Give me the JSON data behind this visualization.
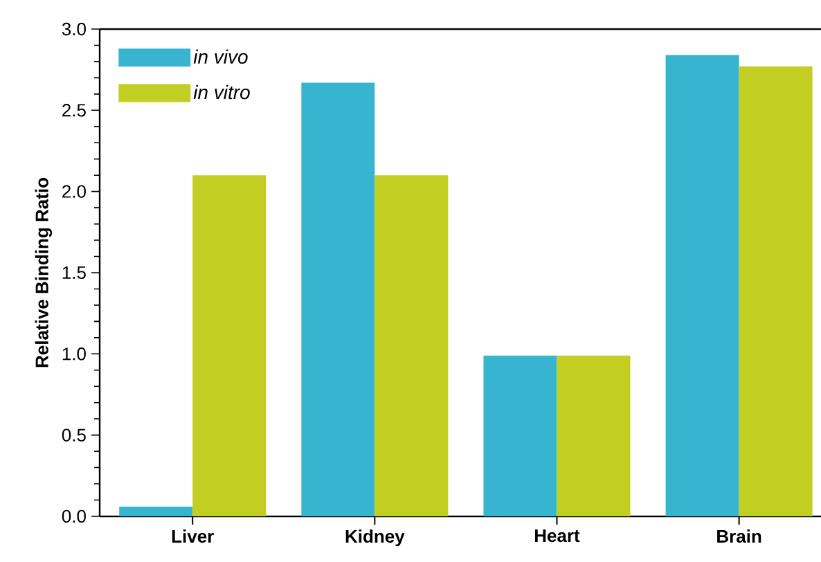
{
  "chart_data": {
    "type": "bar",
    "ylabel": "Relative Binding Ratio",
    "categories": [
      "Liver",
      "Kidney",
      "Heart",
      "Brain"
    ],
    "series": [
      {
        "name": "in vivo",
        "color": "#36b4d0",
        "values": [
          0.06,
          2.67,
          0.99,
          2.84
        ]
      },
      {
        "name": "in vitro",
        "color": "#c2cf22",
        "values": [
          2.1,
          2.1,
          0.99,
          2.77
        ]
      }
    ],
    "ylim": [
      0,
      3
    ],
    "yticks": [
      {
        "value": 0,
        "label": "0.0"
      },
      0.5,
      {
        "value": 1,
        "label": "1.0"
      },
      1.5,
      {
        "value": 2,
        "label": "2.0"
      },
      2.5,
      {
        "value": 3,
        "label": "3.0"
      }
    ],
    "legend": "top left",
    "grid": false
  }
}
